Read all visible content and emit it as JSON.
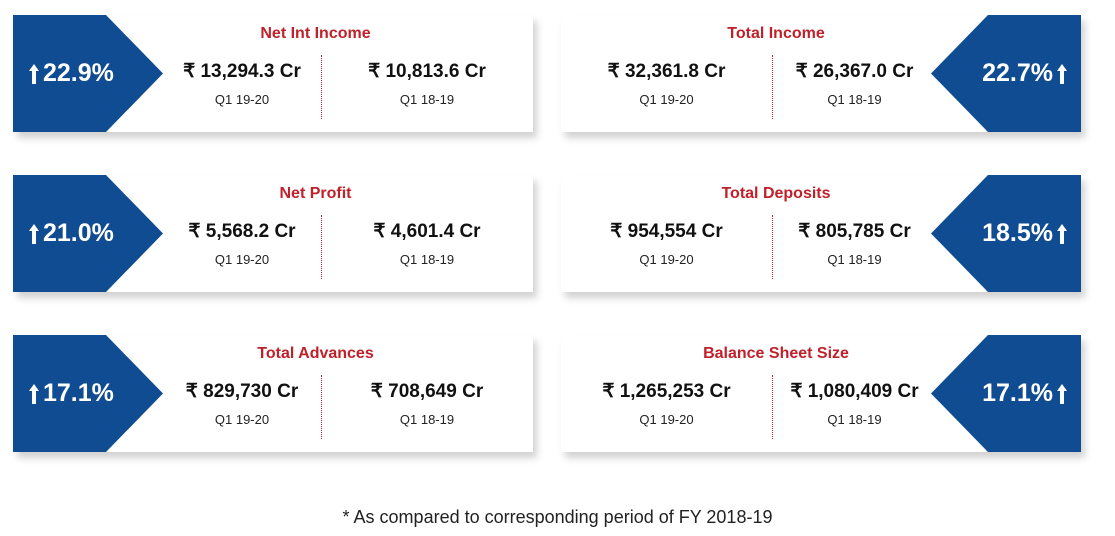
{
  "cards": [
    {
      "title": "Net Int Income",
      "badge": "22.9%",
      "current": {
        "value": "₹ 13,294.3 Cr",
        "period": "Q1 19-20"
      },
      "previous": {
        "value": "₹ 10,813.6 Cr",
        "period": "Q1 18-19"
      }
    },
    {
      "title": "Total Income",
      "badge": "22.7%",
      "current": {
        "value": "₹ 32,361.8 Cr",
        "period": "Q1 19-20"
      },
      "previous": {
        "value": "₹ 26,367.0 Cr",
        "period": "Q1 18-19"
      }
    },
    {
      "title": "Net Profit",
      "badge": "21.0%",
      "current": {
        "value": "₹ 5,568.2 Cr",
        "period": "Q1 19-20"
      },
      "previous": {
        "value": "₹ 4,601.4 Cr",
        "period": "Q1 18-19"
      }
    },
    {
      "title": "Total Deposits",
      "badge": "18.5%",
      "current": {
        "value": "₹ 954,554 Cr",
        "period": "Q1 19-20"
      },
      "previous": {
        "value": "₹ 805,785 Cr",
        "period": "Q1 18-19"
      }
    },
    {
      "title": "Total Advances",
      "badge": "17.1%",
      "current": {
        "value": "₹ 829,730 Cr",
        "period": "Q1 19-20"
      },
      "previous": {
        "value": "₹ 708,649 Cr",
        "period": "Q1 18-19"
      }
    },
    {
      "title": "Balance Sheet Size",
      "badge": "17.1%",
      "current": {
        "value": "₹ 1,265,253 Cr",
        "period": "Q1 19-20"
      },
      "previous": {
        "value": "₹ 1,080,409 Cr",
        "period": "Q1 18-19"
      }
    }
  ],
  "colors": {
    "badge": "#0f4c91",
    "title": "#c0202a"
  },
  "icons": {
    "badge_arrow": "arrow-up-icon"
  },
  "footnote": "* As compared to corresponding period of FY 2018-19"
}
